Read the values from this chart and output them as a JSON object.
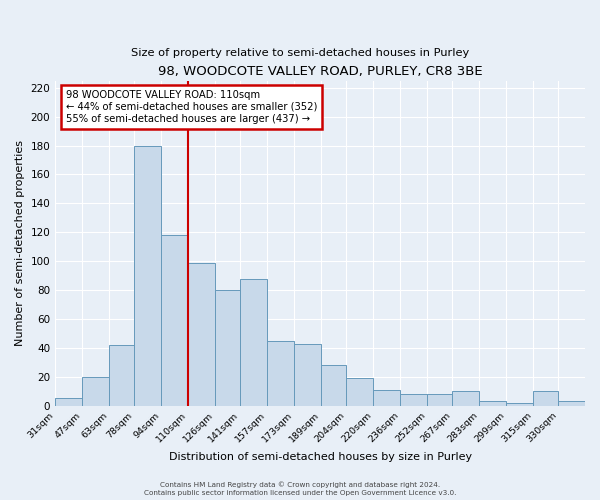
{
  "title": "98, WOODCOTE VALLEY ROAD, PURLEY, CR8 3BE",
  "subtitle": "Size of property relative to semi-detached houses in Purley",
  "xlabel": "Distribution of semi-detached houses by size in Purley",
  "ylabel": "Number of semi-detached properties",
  "bin_edges": [
    31,
    47,
    63,
    78,
    94,
    110,
    126,
    141,
    157,
    173,
    189,
    204,
    220,
    236,
    252,
    267,
    283,
    299,
    315,
    330,
    346
  ],
  "bar_heights": [
    5,
    20,
    42,
    180,
    118,
    99,
    80,
    88,
    45,
    43,
    28,
    19,
    11,
    8,
    8,
    10,
    3,
    2,
    10,
    3
  ],
  "bar_color": "#c8d9ea",
  "bar_edge_color": "#6699bb",
  "vline_x": 110,
  "vline_color": "#cc0000",
  "annotation_title": "98 WOODCOTE VALLEY ROAD: 110sqm",
  "annotation_line1": "← 44% of semi-detached houses are smaller (352)",
  "annotation_line2": "55% of semi-detached houses are larger (437) →",
  "annotation_box_edge_color": "#cc0000",
  "ylim": [
    0,
    225
  ],
  "yticks": [
    0,
    20,
    40,
    60,
    80,
    100,
    120,
    140,
    160,
    180,
    200,
    220
  ],
  "footer1": "Contains HM Land Registry data © Crown copyright and database right 2024.",
  "footer2": "Contains public sector information licensed under the Open Government Licence v3.0.",
  "background_color": "#e8eff7",
  "plot_background": "#e8eff7"
}
